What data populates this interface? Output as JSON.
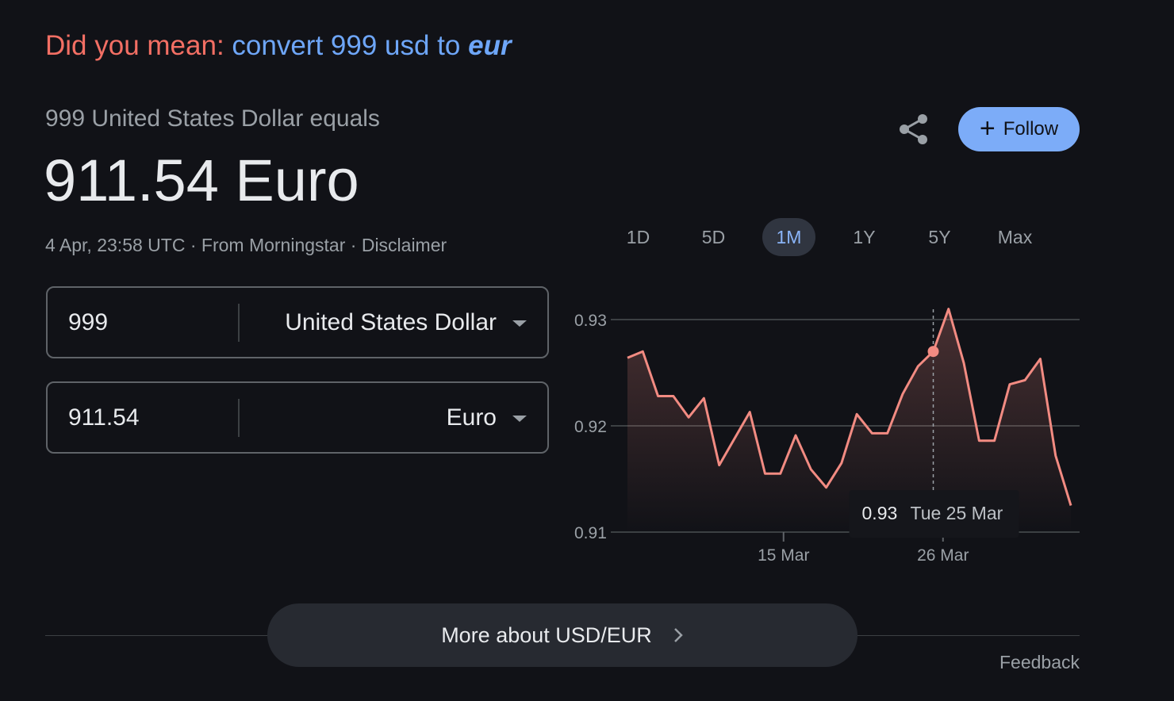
{
  "did_you_mean": {
    "label": "Did you mean:",
    "link_prefix": "convert 999 usd to ",
    "link_bold": "eur"
  },
  "result": {
    "subtitle": "999 United States Dollar equals",
    "value": "911.54 Euro"
  },
  "meta": {
    "timestamp": "4 Apr, 23:58 UTC",
    "sep1": " · ",
    "source": "From Morningstar",
    "sep2": " · ",
    "disclaimer": "Disclaimer"
  },
  "converter": [
    {
      "amount": "999",
      "currency": "United States Dollar"
    },
    {
      "amount": "911.54",
      "currency": "Euro"
    }
  ],
  "actions": {
    "share_icon": "share-icon",
    "follow_label": "Follow",
    "follow_icon": "plus"
  },
  "ranges": [
    "1D",
    "5D",
    "1M",
    "1Y",
    "5Y",
    "Max"
  ],
  "active_range": "1M",
  "colors": {
    "line": "#f28b82",
    "accent": "#8ab4f8",
    "follow_bg": "#7cacf8",
    "did_you_mean": "#f36f64",
    "link": "#6ea6f8"
  },
  "chart_data": {
    "type": "area",
    "x": [
      "5 Mar",
      "6 Mar",
      "7 Mar",
      "8 Mar",
      "9 Mar",
      "10 Mar",
      "11 Mar",
      "12 Mar",
      "13 Mar",
      "14 Mar",
      "15 Mar",
      "16 Mar",
      "17 Mar",
      "18 Mar",
      "19 Mar",
      "20 Mar",
      "21 Mar",
      "22 Mar",
      "23 Mar",
      "24 Mar",
      "25 Mar",
      "26 Mar",
      "27 Mar",
      "28 Mar",
      "29 Mar",
      "30 Mar",
      "31 Mar",
      "1 Apr",
      "2 Apr",
      "3 Apr"
    ],
    "values": [
      0.9264,
      0.927,
      0.9228,
      0.9228,
      0.9208,
      0.9226,
      0.9163,
      0.9188,
      0.9213,
      0.9155,
      0.9155,
      0.9191,
      0.9159,
      0.9142,
      0.9165,
      0.9211,
      0.9193,
      0.9193,
      0.923,
      0.9256,
      0.927,
      0.931,
      0.9259,
      0.9186,
      0.9186,
      0.9239,
      0.9243,
      0.9263,
      0.9172,
      0.9125
    ],
    "ylim": [
      0.91,
      0.931
    ],
    "y_ticks": [
      "0.91",
      "0.92",
      "0.93"
    ],
    "x_ticks": [
      "15 Mar",
      "26 Mar"
    ],
    "grid": true,
    "tooltip": {
      "value": "0.93",
      "date": "Tue 25 Mar"
    }
  },
  "footer": {
    "more_label": "More about USD/EUR",
    "feedback": "Feedback"
  }
}
